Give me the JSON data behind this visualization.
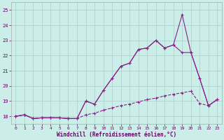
{
  "xlabel": "Windchill (Refroidissement éolien,°C)",
  "bg_color": "#cceee8",
  "grid_color": "#aacccc",
  "line_color": "#882288",
  "xlim": [
    -0.5,
    23.5
  ],
  "ylim": [
    17.5,
    25.5
  ],
  "yticks": [
    18,
    19,
    20,
    21,
    22,
    23,
    24,
    25
  ],
  "xticks": [
    0,
    1,
    2,
    3,
    4,
    5,
    6,
    7,
    8,
    9,
    10,
    11,
    12,
    13,
    14,
    15,
    16,
    17,
    18,
    19,
    20,
    21,
    22,
    23
  ],
  "line1_x": [
    0,
    1,
    2,
    3,
    4,
    5,
    6,
    7,
    8,
    9,
    10,
    11,
    12,
    13,
    14,
    15,
    16,
    17,
    18,
    19,
    20,
    21,
    22,
    23
  ],
  "line1_y": [
    18.0,
    18.1,
    17.85,
    17.9,
    17.9,
    17.9,
    17.85,
    17.85,
    19.0,
    18.8,
    19.7,
    20.5,
    21.3,
    21.5,
    22.4,
    22.5,
    23.0,
    22.5,
    22.7,
    24.7,
    22.2,
    20.5,
    18.7,
    19.1
  ],
  "line2_x": [
    0,
    1,
    2,
    3,
    4,
    5,
    6,
    7,
    8,
    9,
    10,
    11,
    12,
    13,
    14,
    15,
    16,
    17,
    18,
    19,
    20,
    21,
    22,
    23
  ],
  "line2_y": [
    18.0,
    18.1,
    17.85,
    17.9,
    17.9,
    17.9,
    17.85,
    17.85,
    19.0,
    18.8,
    19.7,
    20.5,
    21.3,
    21.5,
    22.4,
    22.5,
    23.0,
    22.5,
    22.7,
    22.2,
    22.2,
    20.5,
    18.7,
    19.1
  ],
  "line3_x": [
    0,
    1,
    2,
    3,
    4,
    5,
    6,
    7,
    8,
    9,
    10,
    11,
    12,
    13,
    14,
    15,
    16,
    17,
    18,
    19,
    20,
    21,
    22,
    23
  ],
  "line3_y": [
    18.0,
    18.1,
    17.85,
    17.9,
    17.9,
    17.9,
    17.85,
    17.85,
    18.1,
    18.2,
    18.4,
    18.55,
    18.7,
    18.8,
    18.95,
    19.1,
    19.2,
    19.35,
    19.45,
    19.55,
    19.65,
    18.85,
    18.7,
    19.1
  ]
}
